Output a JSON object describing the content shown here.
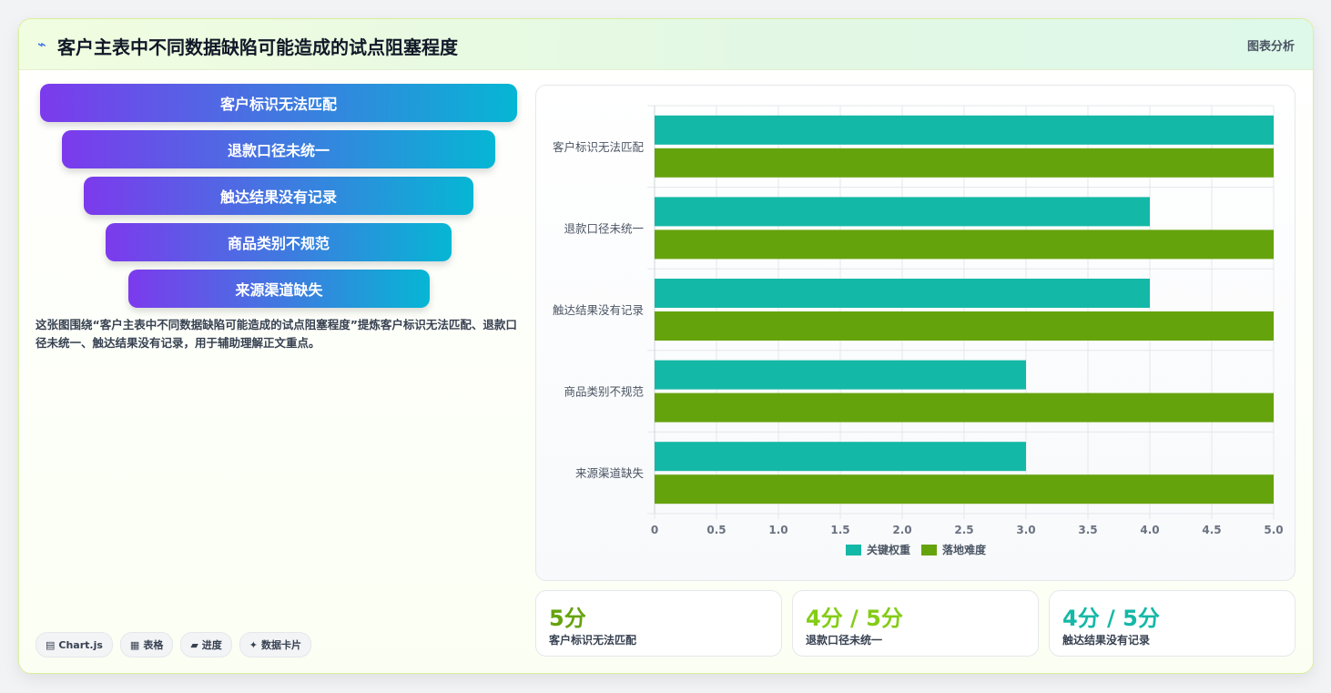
{
  "header": {
    "icon": "chart-icon",
    "title": "客户主表中不同数据缺陷可能造成的试点阻塞程度",
    "action_label": "图表分析"
  },
  "funnel": {
    "items": [
      "客户标识无法匹配",
      "退款口径未统一",
      "触达结果没有记录",
      "商品类别不规范",
      "来源渠道缺失"
    ]
  },
  "description": "这张图围绕“客户主表中不同数据缺陷可能造成的试点阻塞程度”提炼客户标识无法匹配、退款口径未统一、触达结果没有记录，用于辅助理解正文重点。",
  "tags": [
    {
      "icon": "chart-icon",
      "glyph": "▤",
      "label": "Chart.js"
    },
    {
      "icon": "table-icon",
      "glyph": "▦",
      "label": "表格"
    },
    {
      "icon": "progress-icon",
      "glyph": "▰",
      "label": "进度"
    },
    {
      "icon": "sparkle-icon",
      "glyph": "✦",
      "label": "数据卡片"
    }
  ],
  "stats": [
    {
      "value": "5分",
      "label": "客户标识无法匹配",
      "color": "#65a30d"
    },
    {
      "value": "4分 / 5分",
      "label": "退款口径未统一",
      "color": "#84cc16"
    },
    {
      "value": "4分 / 5分",
      "label": "触达结果没有记录",
      "color": "#14b8a6"
    }
  ],
  "chart_data": {
    "type": "bar",
    "orientation": "horizontal",
    "categories": [
      "客户标识无法匹配",
      "退款口径未统一",
      "触达结果没有记录",
      "商品类别不规范",
      "来源渠道缺失"
    ],
    "series": [
      {
        "name": "关键权重",
        "values": [
          5,
          4,
          4,
          3,
          3
        ],
        "color": "#14b8a6"
      },
      {
        "name": "落地难度",
        "values": [
          5,
          5,
          5,
          5,
          5
        ],
        "color": "#65a30d"
      }
    ],
    "xlim": [
      0,
      5
    ],
    "ticks": [
      "0",
      "0.5",
      "1.0",
      "1.5",
      "2.0",
      "2.5",
      "3.0",
      "3.5",
      "4.0",
      "4.5",
      "5.0"
    ],
    "grid": true,
    "legend": "bottom"
  }
}
